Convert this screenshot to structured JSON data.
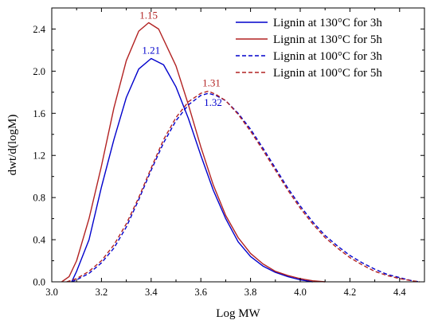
{
  "chart_data": {
    "type": "line",
    "xlabel": "Log MW",
    "ylabel": "dwt/d(logM)",
    "xlim": [
      3.0,
      4.5
    ],
    "ylim": [
      0.0,
      2.6
    ],
    "x_ticks": [
      "3.0",
      "3.2",
      "3.4",
      "3.6",
      "3.8",
      "4.0",
      "4.2",
      "4.4"
    ],
    "y_ticks": [
      "0.0",
      "0.4",
      "0.8",
      "1.2",
      "1.6",
      "2.0",
      "2.4"
    ],
    "grid": false,
    "legend_position": "top-right",
    "series": [
      {
        "name": "Lignin at 130°C for 3h",
        "color": "#0000cc",
        "dash": "solid",
        "peak_label": "1.21",
        "points": [
          [
            3.08,
            0.0
          ],
          [
            3.1,
            0.1
          ],
          [
            3.15,
            0.4
          ],
          [
            3.2,
            0.9
          ],
          [
            3.25,
            1.35
          ],
          [
            3.3,
            1.75
          ],
          [
            3.35,
            2.02
          ],
          [
            3.4,
            2.12
          ],
          [
            3.45,
            2.06
          ],
          [
            3.5,
            1.85
          ],
          [
            3.55,
            1.55
          ],
          [
            3.6,
            1.2
          ],
          [
            3.65,
            0.87
          ],
          [
            3.7,
            0.6
          ],
          [
            3.75,
            0.38
          ],
          [
            3.8,
            0.24
          ],
          [
            3.85,
            0.15
          ],
          [
            3.9,
            0.09
          ],
          [
            3.95,
            0.05
          ],
          [
            4.0,
            0.02
          ],
          [
            4.05,
            0.0
          ]
        ]
      },
      {
        "name": "Lignin at 130°C for 5h",
        "color": "#b22222",
        "dash": "solid",
        "peak_label": "1.15",
        "points": [
          [
            3.04,
            0.0
          ],
          [
            3.07,
            0.05
          ],
          [
            3.1,
            0.2
          ],
          [
            3.15,
            0.6
          ],
          [
            3.2,
            1.1
          ],
          [
            3.25,
            1.65
          ],
          [
            3.3,
            2.1
          ],
          [
            3.35,
            2.38
          ],
          [
            3.39,
            2.46
          ],
          [
            3.43,
            2.4
          ],
          [
            3.5,
            2.05
          ],
          [
            3.55,
            1.68
          ],
          [
            3.6,
            1.28
          ],
          [
            3.65,
            0.92
          ],
          [
            3.7,
            0.63
          ],
          [
            3.75,
            0.42
          ],
          [
            3.8,
            0.27
          ],
          [
            3.85,
            0.17
          ],
          [
            3.9,
            0.1
          ],
          [
            3.95,
            0.06
          ],
          [
            4.0,
            0.03
          ],
          [
            4.05,
            0.01
          ],
          [
            4.1,
            0.0
          ]
        ]
      },
      {
        "name": "Lignin at 100°C for 3h",
        "color": "#0000cc",
        "dash": "dashed",
        "peak_label": "1.32",
        "points": [
          [
            3.08,
            0.0
          ],
          [
            3.1,
            0.02
          ],
          [
            3.15,
            0.08
          ],
          [
            3.2,
            0.18
          ],
          [
            3.25,
            0.32
          ],
          [
            3.3,
            0.52
          ],
          [
            3.35,
            0.78
          ],
          [
            3.4,
            1.06
          ],
          [
            3.45,
            1.32
          ],
          [
            3.5,
            1.53
          ],
          [
            3.55,
            1.68
          ],
          [
            3.6,
            1.77
          ],
          [
            3.63,
            1.79
          ],
          [
            3.66,
            1.77
          ],
          [
            3.7,
            1.72
          ],
          [
            3.75,
            1.6
          ],
          [
            3.8,
            1.45
          ],
          [
            3.85,
            1.27
          ],
          [
            3.9,
            1.08
          ],
          [
            3.95,
            0.89
          ],
          [
            4.0,
            0.72
          ],
          [
            4.05,
            0.57
          ],
          [
            4.1,
            0.44
          ],
          [
            4.15,
            0.34
          ],
          [
            4.2,
            0.25
          ],
          [
            4.25,
            0.18
          ],
          [
            4.3,
            0.12
          ],
          [
            4.35,
            0.07
          ],
          [
            4.4,
            0.04
          ],
          [
            4.45,
            0.01
          ],
          [
            4.48,
            0.0
          ]
        ]
      },
      {
        "name": "Lignin at 100°C for 5h",
        "color": "#b22222",
        "dash": "dashed",
        "peak_label": "1.31",
        "points": [
          [
            3.06,
            0.0
          ],
          [
            3.1,
            0.03
          ],
          [
            3.15,
            0.1
          ],
          [
            3.2,
            0.2
          ],
          [
            3.25,
            0.35
          ],
          [
            3.3,
            0.55
          ],
          [
            3.35,
            0.8
          ],
          [
            3.4,
            1.08
          ],
          [
            3.45,
            1.35
          ],
          [
            3.5,
            1.56
          ],
          [
            3.55,
            1.71
          ],
          [
            3.6,
            1.79
          ],
          [
            3.63,
            1.81
          ],
          [
            3.66,
            1.78
          ],
          [
            3.7,
            1.72
          ],
          [
            3.75,
            1.59
          ],
          [
            3.8,
            1.43
          ],
          [
            3.85,
            1.25
          ],
          [
            3.9,
            1.06
          ],
          [
            3.95,
            0.87
          ],
          [
            4.0,
            0.7
          ],
          [
            4.05,
            0.55
          ],
          [
            4.1,
            0.42
          ],
          [
            4.15,
            0.32
          ],
          [
            4.2,
            0.23
          ],
          [
            4.25,
            0.16
          ],
          [
            4.3,
            0.1
          ],
          [
            4.35,
            0.06
          ],
          [
            4.4,
            0.03
          ],
          [
            4.45,
            0.01
          ],
          [
            4.48,
            0.0
          ]
        ]
      }
    ]
  }
}
